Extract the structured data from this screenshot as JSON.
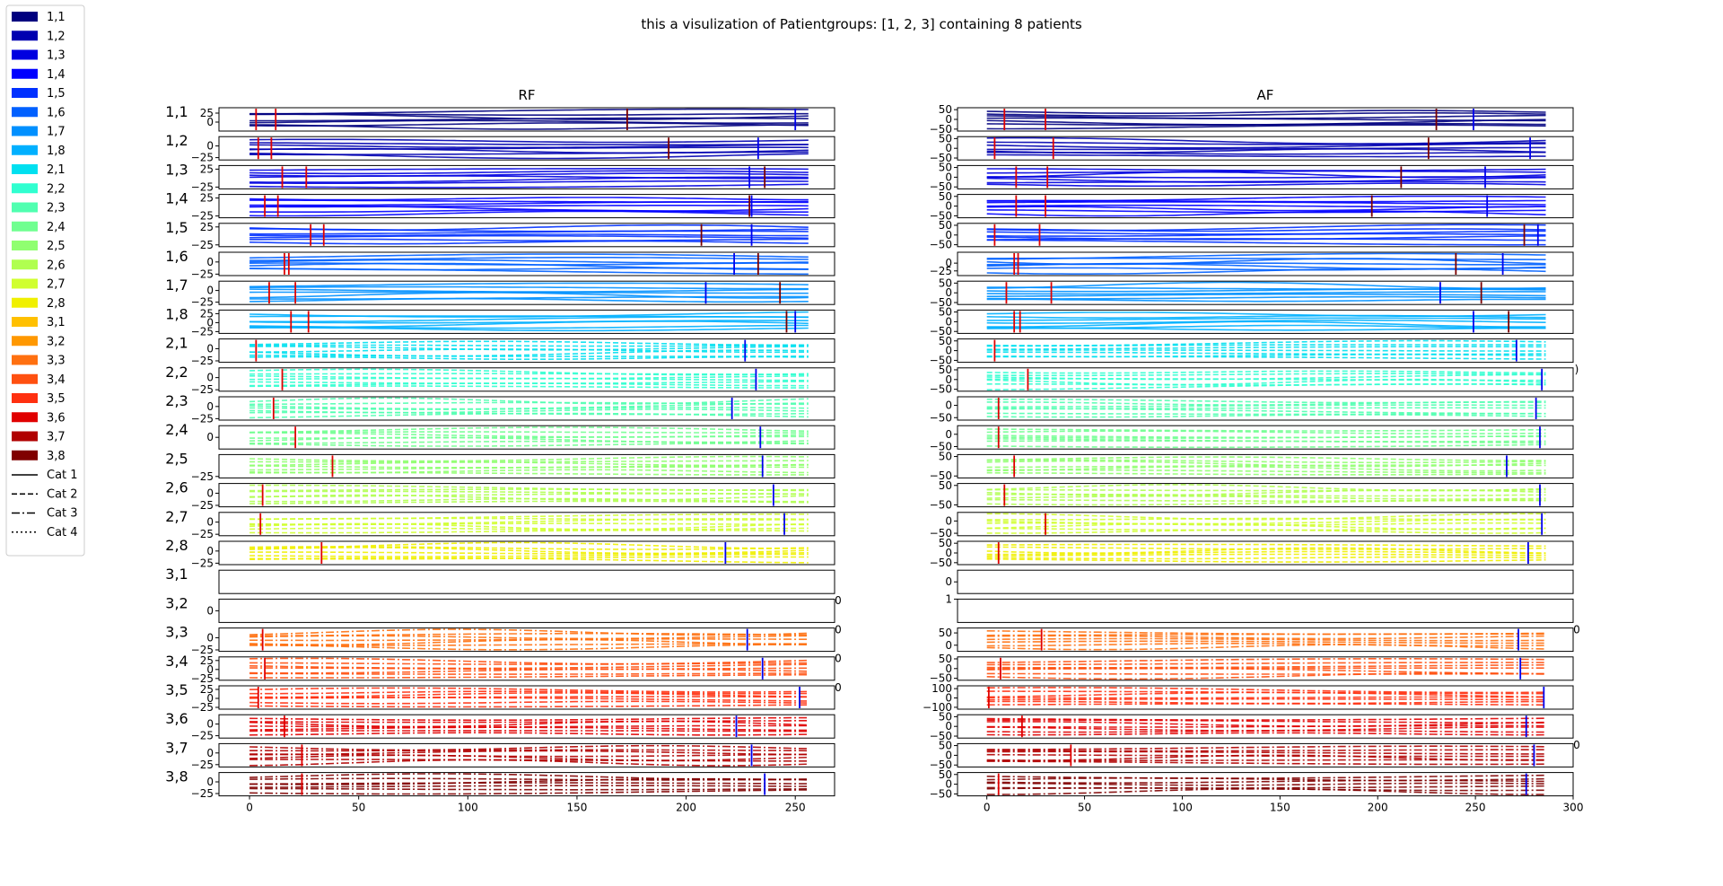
{
  "chart_data": {
    "type": "line",
    "title": "this a visulization of Patientgroups: [1, 2, 3] containing 8 patients",
    "columns": [
      {
        "title": "RF",
        "xlim": [
          -14,
          268
        ],
        "xticks": [
          0,
          50,
          100,
          150,
          200,
          250
        ],
        "xmax_data": 256
      },
      {
        "title": "AF",
        "xlim": [
          -15,
          300
        ],
        "xticks": [
          0,
          50,
          100,
          150,
          200,
          250,
          300
        ],
        "xmax_data": 286
      }
    ],
    "rows": [
      {
        "label": "1,1",
        "group": 1,
        "color": "#00007f",
        "style": "solid",
        "rf": {
          "ylim": [
            -25,
            40
          ],
          "yticks": [
            "25",
            "0"
          ],
          "red": [
            3,
            12
          ],
          "blue": [
            250
          ],
          "dark": [
            173
          ]
        },
        "af": {
          "ylim": [
            -60,
            60
          ],
          "yticks": [
            "50",
            "0",
            "−50"
          ],
          "red": [
            9,
            30
          ],
          "blue": [
            249
          ],
          "dark": [
            230
          ]
        }
      },
      {
        "label": "1,2",
        "group": 1,
        "color": "#0000b0",
        "style": "solid",
        "rf": {
          "ylim": [
            -30,
            20
          ],
          "yticks": [
            "0",
            "−25"
          ],
          "red": [
            4,
            10
          ],
          "blue": [
            233
          ],
          "dark": [
            192
          ]
        },
        "af": {
          "ylim": [
            -60,
            60
          ],
          "yticks": [
            "50",
            "0",
            "−50"
          ],
          "red": [
            4,
            34
          ],
          "blue": [
            278
          ],
          "dark": [
            226
          ]
        }
      },
      {
        "label": "1,3",
        "group": 1,
        "color": "#0000e0",
        "style": "solid",
        "rf": {
          "ylim": [
            -30,
            35
          ],
          "yticks": [
            "25",
            "−25"
          ],
          "red": [
            15,
            26
          ],
          "blue": [
            229
          ],
          "dark": [
            236
          ]
        },
        "af": {
          "ylim": [
            -60,
            60
          ],
          "yticks": [
            "50",
            "0",
            "−50"
          ],
          "red": [
            15,
            31
          ],
          "blue": [
            255
          ],
          "dark": [
            212
          ]
        }
      },
      {
        "label": "1,4",
        "group": 1,
        "color": "#0000ff",
        "style": "solid",
        "rf": {
          "ylim": [
            -30,
            35
          ],
          "yticks": [
            "25",
            "−25"
          ],
          "red": [
            7,
            13
          ],
          "blue": [
            230
          ],
          "dark": [
            229
          ]
        },
        "af": {
          "ylim": [
            -60,
            60
          ],
          "yticks": [
            "50",
            "0",
            "−50"
          ],
          "red": [
            15,
            30
          ],
          "blue": [
            256
          ],
          "dark": [
            197
          ]
        }
      },
      {
        "label": "1,5",
        "group": 1,
        "color": "#0030ff",
        "style": "solid",
        "rf": {
          "ylim": [
            -30,
            35
          ],
          "yticks": [
            "25",
            "−25"
          ],
          "red": [
            28,
            34
          ],
          "blue": [
            230
          ],
          "dark": [
            207
          ]
        },
        "af": {
          "ylim": [
            -60,
            60
          ],
          "yticks": [
            "50",
            "0",
            "−50"
          ],
          "red": [
            4,
            27
          ],
          "blue": [
            282
          ],
          "dark": [
            275
          ]
        }
      },
      {
        "label": "1,6",
        "group": 1,
        "color": "#0060ff",
        "style": "solid",
        "rf": {
          "ylim": [
            -28,
            20
          ],
          "yticks": [
            "0",
            "−25"
          ],
          "red": [
            16,
            18
          ],
          "blue": [
            222
          ],
          "dark": [
            233
          ]
        },
        "af": {
          "ylim": [
            -40,
            35
          ],
          "yticks": [
            "0",
            "−25"
          ],
          "red": [
            14,
            16
          ],
          "blue": [
            264
          ],
          "dark": [
            240
          ]
        }
      },
      {
        "label": "1,7",
        "group": 1,
        "color": "#0090ff",
        "style": "solid",
        "rf": {
          "ylim": [
            -30,
            20
          ],
          "yticks": [
            "0",
            "−25"
          ],
          "red": [
            9,
            21
          ],
          "blue": [
            209
          ],
          "dark": [
            243
          ]
        },
        "af": {
          "ylim": [
            -60,
            60
          ],
          "yticks": [
            "50",
            "0",
            "−50"
          ],
          "red": [
            10,
            33
          ],
          "blue": [
            232
          ],
          "dark": [
            253
          ]
        }
      },
      {
        "label": "1,8",
        "group": 1,
        "color": "#00b0ff",
        "style": "solid",
        "rf": {
          "ylim": [
            -30,
            35
          ],
          "yticks": [
            "25",
            "0",
            "−25"
          ],
          "red": [
            19,
            27
          ],
          "blue": [
            250
          ],
          "dark": [
            246
          ]
        },
        "af": {
          "ylim": [
            -60,
            60
          ],
          "yticks": [
            "50",
            "0",
            "−50"
          ],
          "red": [
            14,
            17
          ],
          "blue": [
            249
          ],
          "dark": [
            267
          ]
        }
      },
      {
        "label": "2,1",
        "group": 2,
        "color": "#00e0f0",
        "style": "dashed",
        "rf": {
          "ylim": [
            -28,
            20
          ],
          "yticks": [
            "0",
            "−25"
          ],
          "red": [
            3
          ],
          "blue": [
            227
          ],
          "dark": []
        },
        "af": {
          "ylim": [
            -60,
            60
          ],
          "yticks": [
            "50",
            "0",
            "−50"
          ],
          "red": [
            4
          ],
          "blue": [
            271
          ],
          "dark": []
        }
      },
      {
        "label": "2,2",
        "group": 2,
        "color": "#30ffd0",
        "style": "dashed",
        "rf": {
          "ylim": [
            -28,
            20
          ],
          "yticks": [
            "0",
            "−25"
          ],
          "red": [
            15
          ],
          "blue": [
            232
          ],
          "dark": []
        },
        "af": {
          "ylim": [
            -60,
            60
          ],
          "yticks": [
            "50",
            "0",
            "−50"
          ],
          "red": [
            21
          ],
          "blue": [
            284
          ],
          "dark": []
        }
      },
      {
        "label": "2,3",
        "group": 2,
        "color": "#50ffb0",
        "style": "dashed",
        "rf": {
          "ylim": [
            -28,
            20
          ],
          "yticks": [
            "0",
            "−25"
          ],
          "red": [
            11
          ],
          "blue": [
            221
          ],
          "dark": []
        },
        "af": {
          "ylim": [
            -60,
            35
          ],
          "yticks": [
            "0",
            "−50"
          ],
          "red": [
            6
          ],
          "blue": [
            281
          ],
          "dark": []
        }
      },
      {
        "label": "2,4",
        "group": 2,
        "color": "#70ff90",
        "style": "dashed",
        "rf": {
          "ylim": [
            -20,
            20
          ],
          "yticks": [
            "0"
          ],
          "red": [
            21
          ],
          "blue": [
            234
          ],
          "dark": []
        },
        "af": {
          "ylim": [
            -60,
            35
          ],
          "yticks": [
            "0",
            "−50"
          ],
          "red": [
            6
          ],
          "blue": [
            283
          ],
          "dark": []
        }
      },
      {
        "label": "2,5",
        "group": 2,
        "color": "#90ff70",
        "style": "dashed",
        "rf": {
          "ylim": [
            -28,
            20
          ],
          "yticks": [
            "−25"
          ],
          "red": [
            38
          ],
          "blue": [
            235
          ],
          "dark": []
        },
        "af": {
          "ylim": [
            -60,
            60
          ],
          "yticks": [
            "50",
            "−50"
          ],
          "red": [
            14
          ],
          "blue": [
            266
          ],
          "dark": []
        }
      },
      {
        "label": "2,6",
        "group": 2,
        "color": "#b0ff50",
        "style": "dashed",
        "rf": {
          "ylim": [
            -28,
            20
          ],
          "yticks": [
            "0",
            "−25"
          ],
          "red": [
            6
          ],
          "blue": [
            240
          ],
          "dark": []
        },
        "af": {
          "ylim": [
            -60,
            60
          ],
          "yticks": [
            "50",
            "−50"
          ],
          "red": [
            9
          ],
          "blue": [
            283
          ],
          "dark": []
        }
      },
      {
        "label": "2,7",
        "group": 2,
        "color": "#d0ff30",
        "style": "dashed",
        "rf": {
          "ylim": [
            -28,
            20
          ],
          "yticks": [
            "0",
            "−25"
          ],
          "red": [
            5
          ],
          "blue": [
            245
          ],
          "dark": []
        },
        "af": {
          "ylim": [
            -60,
            35
          ],
          "yticks": [
            "0",
            "−50"
          ],
          "red": [
            30
          ],
          "blue": [
            284
          ],
          "dark": []
        }
      },
      {
        "label": "2,8",
        "group": 2,
        "color": "#f0f000",
        "style": "dashed",
        "rf": {
          "ylim": [
            -28,
            20
          ],
          "yticks": [
            "0",
            "−25"
          ],
          "red": [
            33
          ],
          "blue": [
            218
          ],
          "dark": []
        },
        "af": {
          "ylim": [
            -60,
            60
          ],
          "yticks": [
            "50",
            "0",
            "−50"
          ],
          "red": [
            6
          ],
          "blue": [
            277
          ],
          "dark": []
        }
      },
      {
        "label": "3,1",
        "group": 3,
        "color": "#ffc000",
        "style": "dashdot",
        "empty": true,
        "rf": {
          "ylim": [
            0,
            1
          ],
          "yticks": [],
          "red": [],
          "blue": [],
          "dark": []
        },
        "af": {
          "ylim": [
            -1,
            1
          ],
          "yticks": [
            "0"
          ],
          "red": [],
          "blue": [],
          "dark": []
        }
      },
      {
        "label": "3,2",
        "group": 3,
        "color": "#ff9800",
        "style": "dashdot",
        "empty": true,
        "rf": {
          "ylim": [
            -1,
            1
          ],
          "yticks": [
            "0"
          ],
          "red": [],
          "blue": [],
          "dark": []
        },
        "af": {
          "ylim": [
            -1,
            1
          ],
          "yticks": [
            "1"
          ],
          "red": [],
          "blue": [],
          "dark": []
        }
      },
      {
        "label": "3,3",
        "group": 3,
        "color": "#ff7010",
        "style": "dashdot",
        "rf": {
          "ylim": [
            -28,
            20
          ],
          "yticks": [
            "0",
            "−25"
          ],
          "red": [
            6
          ],
          "blue": [
            228
          ],
          "dark": []
        },
        "af": {
          "ylim": [
            -25,
            70
          ],
          "yticks": [
            "50",
            "0"
          ],
          "red": [
            28
          ],
          "blue": [
            272
          ],
          "dark": []
        }
      },
      {
        "label": "3,4",
        "group": 3,
        "color": "#ff5010",
        "style": "dashdot",
        "rf": {
          "ylim": [
            -30,
            35
          ],
          "yticks": [
            "25",
            "0",
            "−25"
          ],
          "red": [
            7
          ],
          "blue": [
            235
          ],
          "dark": []
        },
        "af": {
          "ylim": [
            -60,
            60
          ],
          "yticks": [
            "50",
            "0",
            "−50"
          ],
          "red": [
            7
          ],
          "blue": [
            273
          ],
          "dark": []
        }
      },
      {
        "label": "3,5",
        "group": 3,
        "color": "#ff3010",
        "style": "dashdot",
        "rf": {
          "ylim": [
            -30,
            35
          ],
          "yticks": [
            "25",
            "0",
            "−25"
          ],
          "red": [
            4
          ],
          "blue": [
            252
          ],
          "dark": []
        },
        "af": {
          "ylim": [
            -120,
            130
          ],
          "yticks": [
            "100",
            "0",
            "−100"
          ],
          "red": [
            1
          ],
          "blue": [
            285
          ],
          "dark": []
        }
      },
      {
        "label": "3,6",
        "group": 3,
        "color": "#e00000",
        "style": "dashdot",
        "rf": {
          "ylim": [
            -30,
            20
          ],
          "yticks": [
            "0",
            "−25"
          ],
          "red": [
            16
          ],
          "blue": [
            223
          ],
          "dark": []
        },
        "af": {
          "ylim": [
            -60,
            60
          ],
          "yticks": [
            "50",
            "0",
            "−50"
          ],
          "red": [
            18
          ],
          "blue": [
            276
          ],
          "dark": []
        }
      },
      {
        "label": "3,7",
        "group": 3,
        "color": "#b00000",
        "style": "dashdot",
        "rf": {
          "ylim": [
            -30,
            20
          ],
          "yticks": [
            "0",
            "−25"
          ],
          "red": [
            24
          ],
          "blue": [
            230
          ],
          "dark": []
        },
        "af": {
          "ylim": [
            -60,
            60
          ],
          "yticks": [
            "50",
            "0",
            "−50"
          ],
          "red": [
            43
          ],
          "blue": [
            280
          ],
          "dark": []
        }
      },
      {
        "label": "3,8",
        "group": 3,
        "color": "#800000",
        "style": "dashdot",
        "rf": {
          "ylim": [
            -30,
            20
          ],
          "yticks": [
            "0",
            "−25"
          ],
          "red": [
            24
          ],
          "blue": [
            236
          ],
          "dark": []
        },
        "af": {
          "ylim": [
            -60,
            60
          ],
          "yticks": [
            "50",
            "0",
            "−50"
          ],
          "red": [
            6
          ],
          "blue": [
            276
          ],
          "dark": []
        }
      }
    ],
    "legend": {
      "placement": "upper-left",
      "styles": [
        {
          "label": "Cat 1",
          "dash": "solid"
        },
        {
          "label": "Cat 2",
          "dash": "dashed"
        },
        {
          "label": "Cat 3",
          "dash": "dashdot"
        },
        {
          "label": "Cat 4",
          "dash": "dotted"
        }
      ]
    },
    "stray_ticks": [
      {
        "col": 0,
        "row": 16,
        "text": "0"
      },
      {
        "col": 0,
        "row": 17,
        "text": "0"
      },
      {
        "col": 0,
        "row": 18,
        "text": "0"
      },
      {
        "col": 0,
        "row": 19,
        "text": "0"
      },
      {
        "col": 1,
        "row": 8,
        "text": ")"
      },
      {
        "col": 1,
        "row": 17,
        "text": "0"
      },
      {
        "col": 1,
        "row": 21,
        "text": "0"
      }
    ],
    "grid": false
  }
}
